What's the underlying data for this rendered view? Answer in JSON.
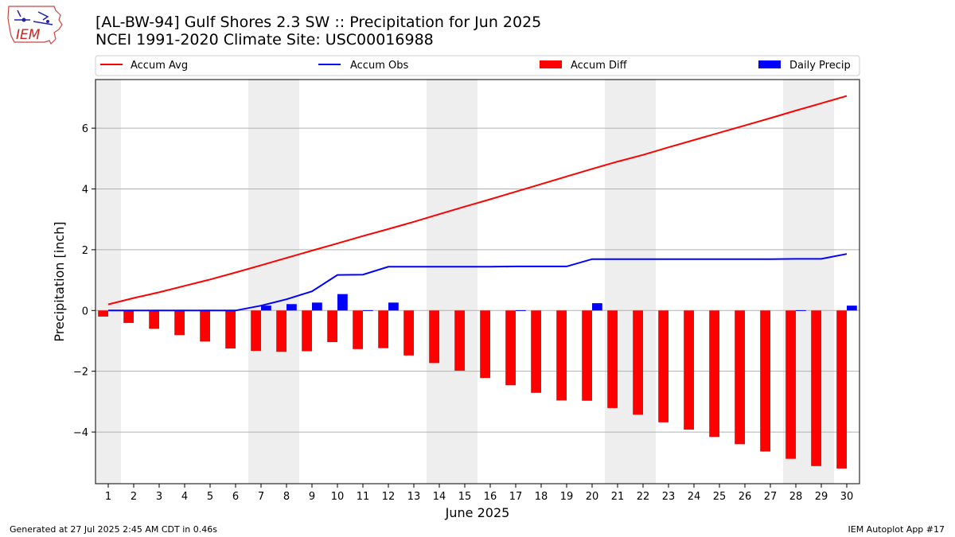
{
  "header": {
    "title_line1": "[AL-BW-94] Gulf Shores 2.3 SW :: Precipitation for Jun 2025",
    "title_line2": "NCEI 1991-2020 Climate Site: USC00016988",
    "logo_text": "IEM"
  },
  "footer": {
    "generated": "Generated at 27 Jul 2025 2:45 AM CDT in 0.46s",
    "app": "IEM Autoplot App #17"
  },
  "colors": {
    "avg": "#ff0000",
    "obs": "#0000ff",
    "diff": "#ff0000",
    "daily": "#0000ff",
    "weekend_shade": "#eeeeee",
    "grid": "#b0b0b0"
  },
  "chart_data": {
    "type": "bar",
    "xlabel": "June 2025",
    "ylabel": "Precipitation [inch]",
    "xlim": [
      0.5,
      30.5
    ],
    "ylim": [
      -5.7,
      7.6
    ],
    "yticks": [
      -4,
      -2,
      0,
      2,
      4,
      6
    ],
    "ytick_labels": [
      "−4",
      "−2",
      "0",
      "2",
      "4",
      "6"
    ],
    "grid": "horizontal",
    "legend_position": "top",
    "legend": [
      "Accum Avg",
      "Accum Obs",
      "Accum Diff",
      "Daily Precip"
    ],
    "shaded_days": [
      1,
      7,
      8,
      14,
      15,
      21,
      22,
      28,
      29
    ],
    "days": [
      1,
      2,
      3,
      4,
      5,
      6,
      7,
      8,
      9,
      10,
      11,
      12,
      13,
      14,
      15,
      16,
      17,
      18,
      19,
      20,
      21,
      22,
      23,
      24,
      25,
      26,
      27,
      28,
      29,
      30
    ],
    "series": [
      {
        "name": "Accum Avg",
        "type": "line",
        "values": [
          0.2,
          0.41,
          0.6,
          0.81,
          1.02,
          1.25,
          1.49,
          1.73,
          1.97,
          2.21,
          2.45,
          2.68,
          2.92,
          3.17,
          3.42,
          3.66,
          3.91,
          4.16,
          4.41,
          4.66,
          4.9,
          5.12,
          5.37,
          5.61,
          5.85,
          6.09,
          6.33,
          6.58,
          6.82,
          7.06
        ]
      },
      {
        "name": "Accum Obs",
        "type": "line",
        "values": [
          0,
          0,
          0,
          0,
          0,
          0,
          0.16,
          0.37,
          0.63,
          1.17,
          1.18,
          1.44,
          1.44,
          1.44,
          1.44,
          1.44,
          1.45,
          1.45,
          1.45,
          1.69,
          1.69,
          1.69,
          1.69,
          1.69,
          1.69,
          1.69,
          1.69,
          1.7,
          1.7,
          1.86
        ]
      },
      {
        "name": "Accum Diff",
        "type": "bar",
        "values": [
          -0.2,
          -0.41,
          -0.6,
          -0.81,
          -1.02,
          -1.25,
          -1.33,
          -1.36,
          -1.34,
          -1.04,
          -1.27,
          -1.24,
          -1.48,
          -1.73,
          -1.98,
          -2.22,
          -2.46,
          -2.71,
          -2.96,
          -2.97,
          -3.21,
          -3.43,
          -3.68,
          -3.92,
          -4.16,
          -4.4,
          -4.64,
          -4.88,
          -5.12,
          -5.2
        ]
      },
      {
        "name": "Daily Precip",
        "type": "bar",
        "values": [
          0,
          0,
          0,
          0,
          0,
          0,
          0.16,
          0.21,
          0.26,
          0.54,
          0.01,
          0.26,
          0,
          0,
          0,
          0,
          0.01,
          0,
          0,
          0.24,
          0,
          0,
          0,
          0,
          0,
          0,
          0,
          0.01,
          0,
          0.16
        ]
      }
    ]
  }
}
